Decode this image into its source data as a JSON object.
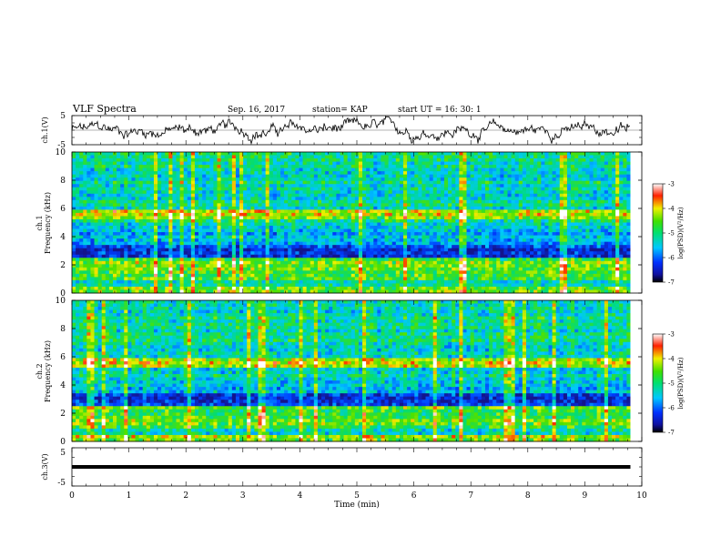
{
  "header": {
    "title": "VLF Spectra",
    "date": "Sep. 16, 2017",
    "station": "station= KAP",
    "start_ut": "start  UT =   16: 30: 1"
  },
  "chart_data": [
    {
      "type": "line",
      "name": "ch1-waveform",
      "ylabel": "ch.1(V)",
      "ylim": [
        -5,
        5
      ],
      "yticks": [
        "5",
        "-5"
      ],
      "xlim": [
        0,
        10
      ],
      "x_end": 9.8,
      "summary": "noisy waveform fluctuating roughly between -4 and 4 V"
    },
    {
      "type": "heatmap",
      "name": "ch1-spectrogram",
      "ylabel_line1": "ch.1",
      "ylabel_line2": "Frequency (kHz)",
      "ylim": [
        0,
        10
      ],
      "yticks": [
        "0",
        "2",
        "4",
        "6",
        "8",
        "10"
      ],
      "xlim": [
        0,
        10
      ],
      "x_end": 9.8,
      "colorbar": {
        "label": "log(PSD)(V²/Hz)",
        "range": [
          -7,
          -3
        ],
        "ticks": [
          "-3",
          "-4",
          "-5",
          "-6",
          "-7"
        ]
      }
    },
    {
      "type": "heatmap",
      "name": "ch2-spectrogram",
      "ylabel_line1": "ch.2",
      "ylabel_line2": "Frequency (kHz)",
      "ylim": [
        0,
        10
      ],
      "yticks": [
        "0",
        "2",
        "4",
        "6",
        "8",
        "10"
      ],
      "xlim": [
        0,
        10
      ],
      "x_end": 9.8,
      "colorbar": {
        "label": "log(PSD)(V²/Hz)",
        "range": [
          -7,
          -3
        ],
        "ticks": [
          "-3",
          "-4",
          "-5",
          "-6",
          "-7"
        ]
      }
    },
    {
      "type": "line",
      "name": "ch3-waveform",
      "ylabel": "ch.3(V)",
      "ylim": [
        -5,
        5
      ],
      "yticks": [
        "5",
        "-5"
      ],
      "xlim": [
        0,
        10
      ],
      "x_end": 9.8,
      "constant_value": 0,
      "xlabel": "Time (min)",
      "xticks": [
        "0",
        "1",
        "2",
        "3",
        "4",
        "5",
        "6",
        "7",
        "8",
        "9",
        "10"
      ]
    }
  ]
}
